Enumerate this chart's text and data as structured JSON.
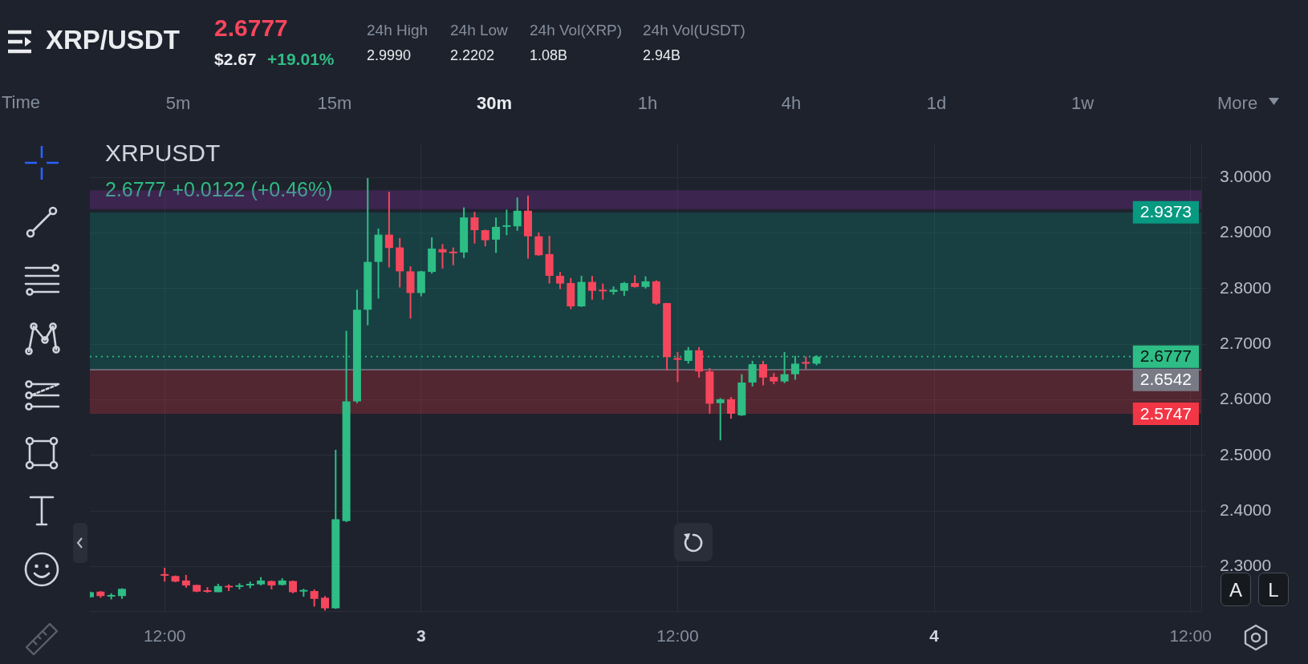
{
  "chart_data": {
    "type": "candlestick",
    "title": "XRPUSDT",
    "subtitle": "2.6777 +0.0122 (+0.46%)",
    "annotations": [
      "XRP/USDT",
      "2.6777",
      "$2.67",
      "+19.01%",
      "24h High",
      "2.9990",
      "24h Low",
      "2.2202",
      "24h Vol(XRP)",
      "1.08B",
      "24h Vol(USDT)",
      "2.94B",
      "Time",
      "5m",
      "15m",
      "30m",
      "1h",
      "4h",
      "1d",
      "1w",
      "More",
      "A",
      "L"
    ],
    "categories": [
      null,
      null,
      null,
      null,
      null,
      null,
      null,
      "12:00",
      null,
      null,
      null,
      null,
      null,
      null,
      null,
      null,
      null,
      null,
      null,
      null,
      null,
      null,
      null,
      null,
      null,
      null,
      null,
      null,
      null,
      null,
      null,
      "3",
      null,
      null,
      null,
      null,
      null,
      null,
      null,
      null,
      null,
      null,
      null,
      null,
      null,
      null,
      null,
      null,
      null,
      null,
      null,
      null,
      null,
      null,
      null,
      "12:00",
      null,
      null,
      null,
      null,
      null,
      null,
      null,
      null,
      null,
      null,
      null,
      null,
      null,
      null,
      null,
      null,
      null,
      null,
      null,
      null,
      null,
      null,
      null,
      "4",
      null,
      null,
      null,
      null,
      null,
      null,
      null,
      null,
      null,
      null,
      null,
      null,
      null,
      null,
      null,
      null,
      null,
      null,
      null,
      null,
      null,
      null,
      null,
      "12:00",
      null
    ],
    "ohlc": [
      [
        2.245,
        2.255,
        2.244,
        2.254
      ],
      [
        2.255,
        2.256,
        2.244,
        2.247
      ],
      [
        2.247,
        2.252,
        2.241,
        2.248
      ],
      [
        2.247,
        2.261,
        2.242,
        2.26
      ],
      null,
      null,
      null,
      [
        2.286,
        2.298,
        2.273,
        2.284
      ],
      [
        2.283,
        2.284,
        2.272,
        2.273
      ],
      [
        2.275,
        2.285,
        2.262,
        2.266
      ],
      [
        2.267,
        2.267,
        2.254,
        2.255
      ],
      [
        2.257,
        2.263,
        2.253,
        2.255
      ],
      [
        2.254,
        2.269,
        2.254,
        2.265
      ],
      [
        2.265,
        2.268,
        2.256,
        2.263
      ],
      [
        2.264,
        2.27,
        2.259,
        2.266
      ],
      [
        2.266,
        2.273,
        2.261,
        2.269
      ],
      [
        2.268,
        2.281,
        2.266,
        2.275
      ],
      [
        2.274,
        2.275,
        2.259,
        2.266
      ],
      [
        2.267,
        2.279,
        2.266,
        2.275
      ],
      [
        2.274,
        2.275,
        2.252,
        2.254
      ],
      [
        2.256,
        2.26,
        2.246,
        2.257
      ],
      [
        2.256,
        2.259,
        2.228,
        2.242
      ],
      [
        2.244,
        2.247,
        2.221,
        2.225
      ],
      [
        2.225,
        2.51,
        2.224,
        2.385
      ],
      [
        2.382,
        2.724,
        2.38,
        2.597
      ],
      [
        2.597,
        2.798,
        2.594,
        2.762
      ],
      [
        2.762,
        2.999,
        2.734,
        2.848
      ],
      [
        2.848,
        2.908,
        2.782,
        2.897
      ],
      [
        2.897,
        2.974,
        2.838,
        2.873
      ],
      [
        2.874,
        2.891,
        2.802,
        2.831
      ],
      [
        2.831,
        2.84,
        2.746,
        2.792
      ],
      [
        2.792,
        2.832,
        2.786,
        2.831
      ],
      [
        2.83,
        2.892,
        2.827,
        2.872
      ],
      [
        2.871,
        2.88,
        2.836,
        2.865
      ],
      [
        2.866,
        2.874,
        2.842,
        2.864
      ],
      [
        2.865,
        2.946,
        2.855,
        2.928
      ],
      [
        2.928,
        2.938,
        2.881,
        2.905
      ],
      [
        2.905,
        2.906,
        2.876,
        2.887
      ],
      [
        2.888,
        2.928,
        2.864,
        2.911
      ],
      [
        2.912,
        2.942,
        2.896,
        2.913
      ],
      [
        2.912,
        2.964,
        2.904,
        2.94
      ],
      [
        2.94,
        2.967,
        2.854,
        2.894
      ],
      [
        2.894,
        2.901,
        2.859,
        2.86
      ],
      [
        2.862,
        2.895,
        2.809,
        2.823
      ],
      [
        2.823,
        2.83,
        2.799,
        2.809
      ],
      [
        2.81,
        2.819,
        2.763,
        2.768
      ],
      [
        2.768,
        2.823,
        2.767,
        2.812
      ],
      [
        2.812,
        2.823,
        2.78,
        2.796
      ],
      [
        2.797,
        2.809,
        2.78,
        2.796
      ],
      [
        2.794,
        2.804,
        2.789,
        2.798
      ],
      [
        2.796,
        2.812,
        2.787,
        2.81
      ],
      [
        2.81,
        2.824,
        2.802,
        2.803
      ],
      [
        2.803,
        2.822,
        2.8,
        2.813
      ],
      [
        2.813,
        2.815,
        2.771,
        2.773
      ],
      [
        2.774,
        2.774,
        2.653,
        2.677
      ],
      [
        2.675,
        2.686,
        2.632,
        2.672
      ],
      [
        2.67,
        2.695,
        2.665,
        2.689
      ],
      [
        2.689,
        2.695,
        2.64,
        2.651
      ],
      [
        2.651,
        2.657,
        2.575,
        2.593
      ],
      [
        2.594,
        2.603,
        2.527,
        2.601
      ],
      [
        2.601,
        2.605,
        2.566,
        2.575
      ],
      [
        2.572,
        2.646,
        2.571,
        2.631
      ],
      [
        2.631,
        2.67,
        2.624,
        2.664
      ],
      [
        2.664,
        2.67,
        2.626,
        2.64
      ],
      [
        2.641,
        2.648,
        2.628,
        2.633
      ],
      [
        2.633,
        2.686,
        2.63,
        2.646
      ],
      [
        2.646,
        2.679,
        2.636,
        2.665
      ],
      [
        2.668,
        2.678,
        2.655,
        2.665
      ],
      [
        2.665,
        2.68,
        2.662,
        2.6777
      ],
      null,
      null,
      null,
      null,
      null,
      null,
      null,
      null,
      null,
      null,
      null,
      null,
      null,
      null,
      null,
      null,
      null,
      null,
      null,
      null,
      null,
      null,
      null,
      null,
      null,
      null,
      null,
      null,
      null,
      null,
      null,
      null,
      null,
      null,
      null,
      null
    ],
    "colors": [
      "#2ebd85",
      "#f6465d",
      "#2ebd85",
      "#2ebd85",
      null,
      null,
      null,
      "#f6465d",
      "#f6465d",
      "#f6465d",
      "#f6465d",
      "#f6465d",
      "#2ebd85",
      "#f6465d",
      "#2ebd85",
      "#2ebd85",
      "#2ebd85",
      "#f6465d",
      "#2ebd85",
      "#f6465d",
      "#2ebd85",
      "#f6465d",
      "#f6465d",
      "#2ebd85",
      "#2ebd85",
      "#2ebd85",
      "#2ebd85",
      "#2ebd85",
      "#f6465d",
      "#f6465d",
      "#f6465d",
      "#2ebd85",
      "#2ebd85",
      "#f6465d",
      "#f6465d",
      "#2ebd85",
      "#f6465d",
      "#f6465d",
      "#2ebd85",
      "#2ebd85",
      "#2ebd85",
      "#f6465d",
      "#f6465d",
      "#f6465d",
      "#f6465d",
      "#f6465d",
      "#2ebd85",
      "#f6465d",
      "#f6465d",
      "#2ebd85",
      "#2ebd85",
      "#f6465d",
      "#2ebd85",
      "#f6465d",
      "#f6465d",
      "#f6465d",
      "#2ebd85",
      "#f6465d",
      "#f6465d",
      "#2ebd85",
      "#f6465d",
      "#2ebd85",
      "#2ebd85",
      "#f6465d",
      "#f6465d",
      "#2ebd85",
      "#2ebd85",
      "#f6465d",
      "#2ebd85",
      null,
      null,
      null,
      null,
      null,
      null,
      null,
      null,
      null,
      null,
      null,
      null,
      null,
      null,
      null,
      null,
      null,
      null,
      null,
      null,
      null,
      null,
      null,
      null,
      null,
      null,
      null,
      null,
      null,
      null,
      null,
      null,
      null,
      null,
      null,
      null
    ],
    "ylim": [
      2.22,
      3.06
    ],
    "yticks": [
      {
        "value": 2.3,
        "label": "2.3000"
      },
      {
        "value": 2.4,
        "label": "2.4000"
      },
      {
        "value": 2.5,
        "label": "2.5000"
      },
      {
        "value": 2.6,
        "label": "2.6000"
      },
      {
        "value": 2.7,
        "label": "2.7000"
      },
      {
        "value": 2.8,
        "label": "2.8000"
      },
      {
        "value": 2.9,
        "label": "2.9000"
      },
      {
        "value": 3,
        "label": "3.0000"
      }
    ],
    "grid": true,
    "bands": [
      {
        "axis": "y",
        "from": 2.943,
        "to": 2.977,
        "color": "#9632b9"
      },
      {
        "axis": "y",
        "from": 2.6542,
        "to": 2.9373,
        "label": "2.9373",
        "color": "#089981"
      },
      {
        "axis": "y",
        "from": 2.6542,
        "to": 2.5747,
        "label": "2.5747",
        "color": "#f23645"
      }
    ],
    "ref_lines": [
      {
        "axis": "y",
        "value": 2.6777,
        "label": "2.6777",
        "color": "#2ebd85",
        "line_style": "dotted"
      },
      {
        "axis": "y",
        "value": 2.6542,
        "label": "2.6542",
        "color": "#787b86",
        "line_style": "solid"
      }
    ]
  }
}
